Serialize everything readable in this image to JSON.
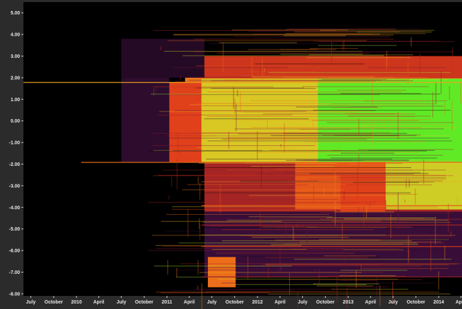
{
  "chart_data": {
    "type": "heatmap",
    "title": "",
    "xlabel": "",
    "ylabel": "",
    "x_tick_labels": [
      "July",
      "October",
      "2010",
      "April",
      "July",
      "October",
      "2011",
      "April",
      "July",
      "October",
      "2012",
      "April",
      "July",
      "October",
      "2013",
      "April",
      "July",
      "October",
      "2014",
      "April"
    ],
    "y_tick_labels": [
      "5.00",
      "4.00",
      "3.00",
      "2.00",
      "1.00",
      "0.00",
      "-1.00",
      "-2.00",
      "-3.00",
      "-4.00",
      "-5.00",
      "-6.00",
      "-7.00",
      "-8.00"
    ],
    "y_ticks": [
      5,
      4,
      3,
      2,
      1,
      0,
      -1,
      -2,
      -3,
      -4,
      -5,
      -6,
      -7,
      -8
    ],
    "ylim": [
      -8.1,
      5.5
    ],
    "x_start": "2009-06-01",
    "x_end": "2014-04-05",
    "x_ticks": [
      "2009-07-01",
      "2009-10-01",
      "2010-01-01",
      "2010-04-01",
      "2010-07-01",
      "2010-10-01",
      "2011-01-01",
      "2011-04-01",
      "2011-07-01",
      "2011-10-01",
      "2012-01-01",
      "2012-04-01",
      "2012-07-01",
      "2012-10-01",
      "2013-01-01",
      "2013-04-01",
      "2013-07-01",
      "2013-10-01",
      "2014-01-01",
      "2014-04-01"
    ],
    "grid": false,
    "color_scale": [
      "#000000",
      "#3a0f3a",
      "#7a1a3a",
      "#b0281e",
      "#e0401a",
      "#f07a1a",
      "#e8c020",
      "#a8e030",
      "#30f020"
    ],
    "regions": [
      {
        "x": [
          "2011-03-15",
          "2014-04-05"
        ],
        "y": [
          -1.9,
          2.0
        ],
        "level": 0.62
      },
      {
        "x": [
          "2011-05-20",
          "2014-04-05"
        ],
        "y": [
          -1.9,
          2.0
        ],
        "level": 0.78
      },
      {
        "x": [
          "2012-09-01",
          "2014-04-05"
        ],
        "y": [
          -1.9,
          1.95
        ],
        "level": 0.95
      },
      {
        "x": [
          "2011-01-10",
          "2011-05-20"
        ],
        "y": [
          -1.9,
          1.8
        ],
        "level": 0.5
      },
      {
        "x": [
          "2011-05-20",
          "2014-04-05"
        ],
        "y": [
          2.0,
          3.0
        ],
        "level": 0.45
      },
      {
        "x": [
          "2011-06-01",
          "2014-04-05"
        ],
        "y": [
          -4.2,
          -1.9
        ],
        "level": 0.35
      },
      {
        "x": [
          "2012-06-01",
          "2014-04-05"
        ],
        "y": [
          -4.1,
          -1.9
        ],
        "level": 0.55
      },
      {
        "x": [
          "2013-06-01",
          "2014-04-05"
        ],
        "y": [
          -4.1,
          -1.9
        ],
        "level": 0.8
      },
      {
        "x": [
          "2012-12-01",
          "2013-06-01"
        ],
        "y": [
          -5.2,
          -2.5
        ],
        "level": 0.5
      },
      {
        "x": [
          "2013-02-15",
          "2013-05-15"
        ],
        "y": [
          -6.0,
          -4.2
        ],
        "level": 0.55
      },
      {
        "x": [
          "2013-06-01",
          "2014-04-05"
        ],
        "y": [
          -5.0,
          -4.2
        ],
        "level": 0.3
      },
      {
        "x": [
          "2011-06-01",
          "2014-04-05"
        ],
        "y": [
          -7.2,
          -4.2
        ],
        "level": 0.12
      },
      {
        "x": [
          "2011-06-15",
          "2011-10-05"
        ],
        "y": [
          -7.7,
          -6.3
        ],
        "level": 0.6
      },
      {
        "x": [
          "2010-07-01",
          "2011-01-10"
        ],
        "y": [
          -1.9,
          2.0
        ],
        "level": 0.1
      },
      {
        "x": [
          "2010-07-01",
          "2011-06-01"
        ],
        "y": [
          2.0,
          3.8
        ],
        "level": 0.08
      }
    ],
    "lines": [
      {
        "x": [
          "2009-06-01",
          "2014-04-05"
        ],
        "y": 1.8,
        "level": 0.7
      },
      {
        "x": [
          "2010-01-20",
          "2014-04-05"
        ],
        "y": -1.9,
        "level": 0.6
      },
      {
        "x": [
          "2011-05-20",
          "2014-04-05"
        ],
        "y": 2.0,
        "level": 0.5
      },
      {
        "x": [
          "2011-05-20",
          "2014-04-05"
        ],
        "y": -3.9,
        "level": 0.55
      },
      {
        "x": [
          "2011-05-20",
          "2014-04-05"
        ],
        "y": -5.8,
        "level": 0.45
      },
      {
        "x": [
          "2011-05-20",
          "2014-04-05"
        ],
        "y": -4.8,
        "level": 0.35
      },
      {
        "x": [
          "2011-05-20",
          "2014-04-05"
        ],
        "y": -7.2,
        "level": 0.3
      }
    ]
  }
}
